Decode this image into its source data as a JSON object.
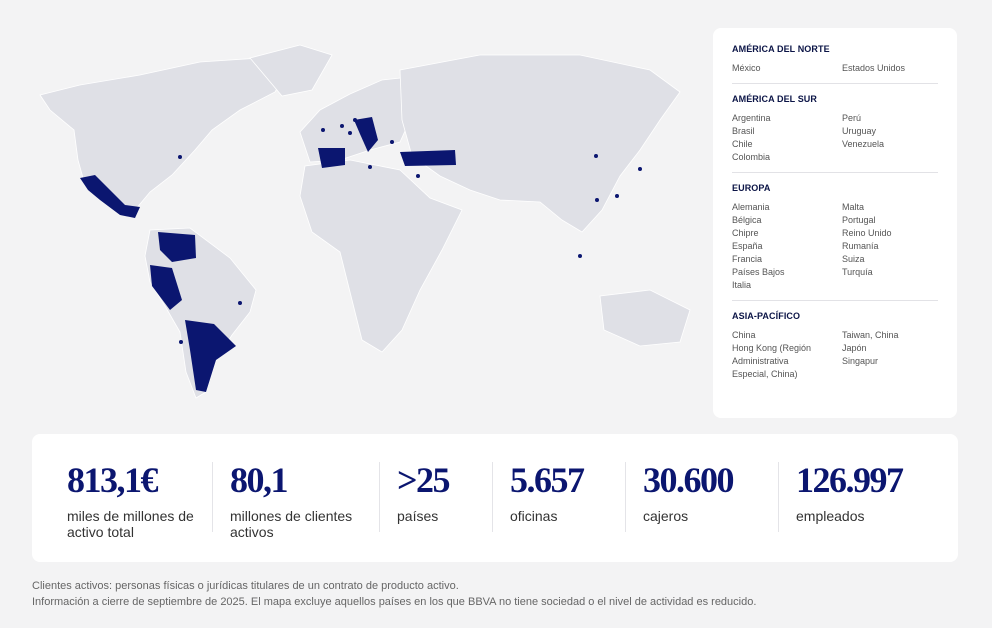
{
  "colors": {
    "accent": "#0b1670",
    "land": "#dfe0e6",
    "background": "#f3f3f4"
  },
  "legend": [
    {
      "title": "AMÉRICA DEL NORTE",
      "col1": [
        "México"
      ],
      "col2": [
        "Estados Unidos"
      ]
    },
    {
      "title": "AMÉRICA DEL SUR",
      "col1": [
        "Argentina",
        "Brasil",
        "Chile",
        "Colombia"
      ],
      "col2": [
        "Perú",
        "Uruguay",
        "Venezuela"
      ]
    },
    {
      "title": "EUROPA",
      "col1": [
        "Alemania",
        "Bélgica",
        "Chipre",
        "España",
        "Francia",
        "Países Bajos",
        "Italia"
      ],
      "col2": [
        "Malta",
        "Portugal",
        "Reino Unido",
        "Rumanía",
        "Suiza",
        "Turquía"
      ]
    },
    {
      "title": "ASIA-PACÍFICO",
      "col1": [
        "China",
        "Hong Kong (Región",
        "Administrativa",
        "Especial, China)"
      ],
      "col2": [
        "Taiwan, China",
        "Japón",
        "Singapur"
      ]
    }
  ],
  "stats": [
    {
      "value": "813,1€",
      "label": "miles de millones de activo total"
    },
    {
      "value": "80,1",
      "label": "millones de clientes activos"
    },
    {
      "value": ">25",
      "label": "países"
    },
    {
      "value": "5.657",
      "label": "oficinas"
    },
    {
      "value": "30.600",
      "label": "cajeros"
    },
    {
      "value": "126.997",
      "label": "empleados"
    }
  ],
  "notes": [
    "Clientes activos: personas físicas o jurídicas titulares de un contrato de producto activo.",
    "Información a cierre de septiembre de 2025. El mapa excluye aquellos países en los que BBVA no tiene sociedad o el nivel de actividad es reducido."
  ]
}
